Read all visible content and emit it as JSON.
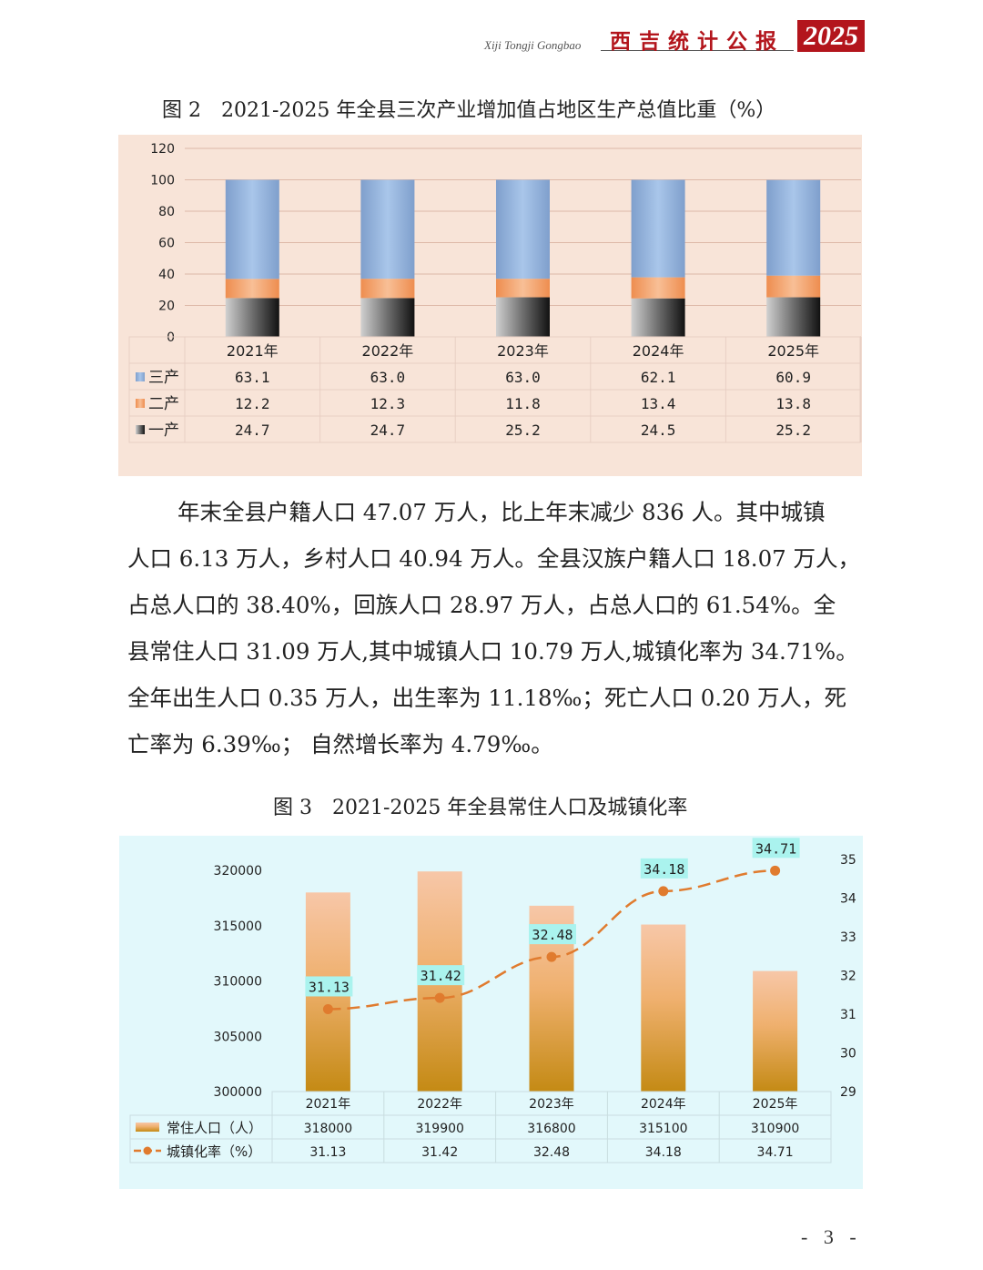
{
  "header": {
    "subtitle": "Xiji Tongji Gongbao",
    "title_cn": "西吉统计公报",
    "year": "2025"
  },
  "figure2": {
    "title": "图 2　2021-2025 年全县三次产业增加值占地区生产总值比重（%）",
    "chart_data": {
      "type": "bar",
      "stacked": true,
      "categories": [
        "2021年",
        "2022年",
        "2023年",
        "2024年",
        "2025年"
      ],
      "series": [
        {
          "name": "一产",
          "values": [
            24.7,
            24.7,
            25.2,
            24.5,
            25.2
          ],
          "color": "#3a3a3a"
        },
        {
          "name": "二产",
          "values": [
            12.2,
            12.3,
            11.8,
            13.4,
            13.8
          ],
          "color": "#f2a06a"
        },
        {
          "name": "三产",
          "values": [
            63.1,
            63.0,
            63.0,
            62.1,
            60.9
          ],
          "color": "#8fb1dc"
        }
      ],
      "table_rows": [
        {
          "name": "三产",
          "values": [
            "63.1",
            "63.0",
            "63.0",
            "62.1",
            "60.9"
          ]
        },
        {
          "name": "二产",
          "values": [
            "12.2",
            "12.3",
            "11.8",
            "13.4",
            "13.8"
          ]
        },
        {
          "name": "一产",
          "values": [
            "24.7",
            "24.7",
            "25.2",
            "24.5",
            "25.2"
          ]
        }
      ],
      "y_ticks": [
        "0",
        "20",
        "40",
        "60",
        "80",
        "100",
        "120"
      ],
      "ylim": [
        0,
        120
      ],
      "grid": true,
      "background": "#f8e4d8"
    }
  },
  "paragraph": [
    "年末全县户籍人口 47.07 万人，比上年末减少 836 人。其中城镇",
    "人口 6.13 万人，乡村人口 40.94 万人。全县汉族户籍人口 18.07 万人，",
    "占总人口的 38.40%，回族人口 28.97 万人，占总人口的 61.54%。全",
    "县常住人口 31.09 万人,其中城镇人口 10.79 万人,城镇化率为 34.71%。",
    "全年出生人口 0.35 万人，出生率为 11.18‰；死亡人口 0.20 万人，死",
    "亡率为 6.39‰； 自然增长率为 4.79‰。"
  ],
  "figure3": {
    "title": "图 3　2021-2025 年全县常住人口及城镇化率",
    "chart_data": {
      "type": "bar",
      "categories": [
        "2021年",
        "2022年",
        "2023年",
        "2024年",
        "2025年"
      ],
      "series": [
        {
          "name": "常住人口（人）",
          "type": "bar",
          "axis": "left",
          "values": [
            318000,
            319900,
            316800,
            315100,
            310900
          ],
          "color": "#e7a066"
        },
        {
          "name": "城镇化率（%）",
          "type": "line",
          "axis": "right",
          "values": [
            31.13,
            31.42,
            32.48,
            34.18,
            34.71
          ],
          "color": "#e07b2e"
        }
      ],
      "data_labels": [
        "31.13",
        "31.42",
        "32.48",
        "34.18",
        "34.71"
      ],
      "table_rows": [
        {
          "name": "常住人口（人）",
          "values": [
            "318000",
            "319900",
            "316800",
            "315100",
            "310900"
          ]
        },
        {
          "name": "城镇化率（%）",
          "values": [
            "31.13",
            "31.42",
            "32.48",
            "34.18",
            "34.71"
          ]
        }
      ],
      "y_left_ticks": [
        "300000",
        "305000",
        "310000",
        "315000",
        "320000"
      ],
      "y_left_lim": [
        300000,
        320000
      ],
      "y_right_ticks": [
        "29",
        "30",
        "31",
        "32",
        "33",
        "34",
        "35"
      ],
      "y_right_lim": [
        29,
        35
      ],
      "background": "#e2f8fb"
    }
  },
  "page_number": "- 3 -"
}
